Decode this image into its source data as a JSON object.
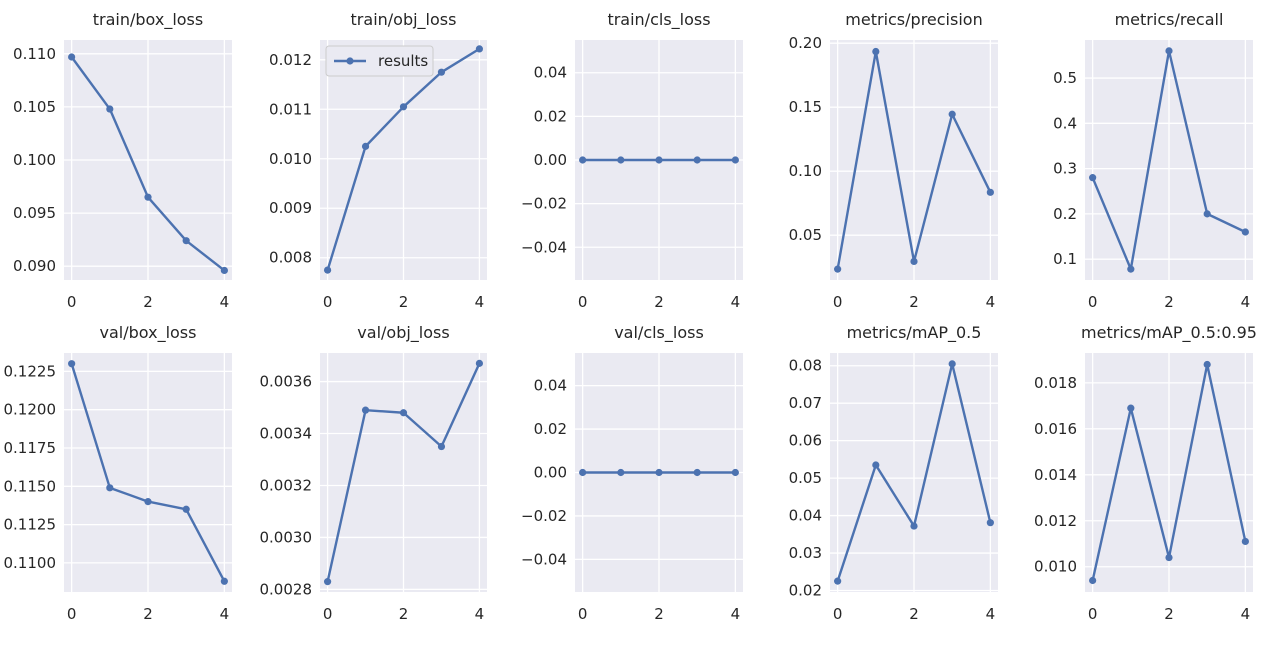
{
  "figure": {
    "background": "#ffffff",
    "axes_background": "#eaeaf2",
    "grid_color": "#ffffff",
    "line_color": "#4c72b0",
    "text_color": "#262626",
    "legend_label": "results"
  },
  "chart_data": [
    {
      "type": "line",
      "title": "train/box_loss",
      "x": [
        0,
        1,
        2,
        3,
        4
      ],
      "xticks": [
        0,
        2,
        4
      ],
      "xtick_labels": [
        "0",
        "2",
        "4"
      ],
      "values": [
        0.1097,
        0.1048,
        0.0965,
        0.0924,
        0.0896
      ],
      "ylim": [
        0.0887,
        0.1113
      ],
      "yticks": [
        0.09,
        0.095,
        0.1,
        0.105,
        0.11
      ],
      "ytick_labels": [
        "0.090",
        "0.095",
        "0.100",
        "0.105",
        "0.110"
      ],
      "legend": false
    },
    {
      "type": "line",
      "title": "train/obj_loss",
      "x": [
        0,
        1,
        2,
        3,
        4
      ],
      "xticks": [
        0,
        2,
        4
      ],
      "xtick_labels": [
        "0",
        "2",
        "4"
      ],
      "values": [
        0.00775,
        0.01025,
        0.01105,
        0.01175,
        0.01222
      ],
      "ylim": [
        0.00755,
        0.0124
      ],
      "yticks": [
        0.008,
        0.009,
        0.01,
        0.011,
        0.012
      ],
      "ytick_labels": [
        "0.008",
        "0.009",
        "0.010",
        "0.011",
        "0.012"
      ],
      "legend": true
    },
    {
      "type": "line",
      "title": "train/cls_loss",
      "x": [
        0,
        1,
        2,
        3,
        4
      ],
      "xticks": [
        0,
        2,
        4
      ],
      "xtick_labels": [
        "0",
        "2",
        "4"
      ],
      "values": [
        0,
        0,
        0,
        0,
        0
      ],
      "ylim": [
        -0.055,
        0.055
      ],
      "yticks": [
        -0.04,
        -0.02,
        0.0,
        0.02,
        0.04
      ],
      "ytick_labels": [
        "−0.04",
        "−0.02",
        "0.00",
        "0.02",
        "0.04"
      ],
      "legend": false
    },
    {
      "type": "line",
      "title": "metrics/precision",
      "x": [
        0,
        1,
        2,
        3,
        4
      ],
      "xticks": [
        0,
        2,
        4
      ],
      "xtick_labels": [
        "0",
        "2",
        "4"
      ],
      "values": [
        0.0235,
        0.1935,
        0.0295,
        0.1445,
        0.0835
      ],
      "ylim": [
        0.015,
        0.2025
      ],
      "yticks": [
        0.05,
        0.1,
        0.15,
        0.2
      ],
      "ytick_labels": [
        "0.05",
        "0.10",
        "0.15",
        "0.20"
      ],
      "legend": false
    },
    {
      "type": "line",
      "title": "metrics/recall",
      "x": [
        0,
        1,
        2,
        3,
        4
      ],
      "xticks": [
        0,
        2,
        4
      ],
      "xtick_labels": [
        "0",
        "2",
        "4"
      ],
      "values": [
        0.28,
        0.078,
        0.56,
        0.2,
        0.16
      ],
      "ylim": [
        0.054,
        0.584
      ],
      "yticks": [
        0.1,
        0.2,
        0.3,
        0.4,
        0.5
      ],
      "ytick_labels": [
        "0.1",
        "0.2",
        "0.3",
        "0.4",
        "0.5"
      ],
      "legend": false
    },
    {
      "type": "line",
      "title": "val/box_loss",
      "x": [
        0,
        1,
        2,
        3,
        4
      ],
      "xticks": [
        0,
        2,
        4
      ],
      "xtick_labels": [
        "0",
        "2",
        "4"
      ],
      "values": [
        0.123,
        0.1149,
        0.114,
        0.1135,
        0.1088
      ],
      "ylim": [
        0.1081,
        0.1237
      ],
      "yticks": [
        0.11,
        0.1125,
        0.115,
        0.1175,
        0.12,
        0.1225
      ],
      "ytick_labels": [
        "0.1100",
        "0.1125",
        "0.1150",
        "0.1175",
        "0.1200",
        "0.1225"
      ],
      "legend": false
    },
    {
      "type": "line",
      "title": "val/obj_loss",
      "x": [
        0,
        1,
        2,
        3,
        4
      ],
      "xticks": [
        0,
        2,
        4
      ],
      "xtick_labels": [
        "0",
        "2",
        "4"
      ],
      "values": [
        0.00283,
        0.00349,
        0.00348,
        0.00335,
        0.00367
      ],
      "ylim": [
        0.00279,
        0.00371
      ],
      "yticks": [
        0.0028,
        0.003,
        0.0032,
        0.0034,
        0.0036
      ],
      "ytick_labels": [
        "0.0028",
        "0.0030",
        "0.0032",
        "0.0034",
        "0.0036"
      ],
      "legend": false
    },
    {
      "type": "line",
      "title": "val/cls_loss",
      "x": [
        0,
        1,
        2,
        3,
        4
      ],
      "xticks": [
        0,
        2,
        4
      ],
      "xtick_labels": [
        "0",
        "2",
        "4"
      ],
      "values": [
        0,
        0,
        0,
        0,
        0
      ],
      "ylim": [
        -0.055,
        0.055
      ],
      "yticks": [
        -0.04,
        -0.02,
        0.0,
        0.02,
        0.04
      ],
      "ytick_labels": [
        "−0.04",
        "−0.02",
        "0.00",
        "0.02",
        "0.04"
      ],
      "legend": false
    },
    {
      "type": "line",
      "title": "metrics/mAP_0.5",
      "x": [
        0,
        1,
        2,
        3,
        4
      ],
      "xticks": [
        0,
        2,
        4
      ],
      "xtick_labels": [
        "0",
        "2",
        "4"
      ],
      "values": [
        0.0225,
        0.0535,
        0.0372,
        0.0805,
        0.0381
      ],
      "ylim": [
        0.0196,
        0.0834
      ],
      "yticks": [
        0.02,
        0.03,
        0.04,
        0.05,
        0.06,
        0.07,
        0.08
      ],
      "ytick_labels": [
        "0.02",
        "0.03",
        "0.04",
        "0.05",
        "0.06",
        "0.07",
        "0.08"
      ],
      "legend": false
    },
    {
      "type": "line",
      "title": "metrics/mAP_0.5:0.95",
      "x": [
        0,
        1,
        2,
        3,
        4
      ],
      "xticks": [
        0,
        2,
        4
      ],
      "xtick_labels": [
        "0",
        "2",
        "4"
      ],
      "values": [
        0.0094,
        0.0169,
        0.0104,
        0.0188,
        0.0111
      ],
      "ylim": [
        0.0089,
        0.0193
      ],
      "yticks": [
        0.01,
        0.012,
        0.014,
        0.016,
        0.018
      ],
      "ytick_labels": [
        "0.010",
        "0.012",
        "0.014",
        "0.016",
        "0.018"
      ],
      "legend": false
    }
  ]
}
